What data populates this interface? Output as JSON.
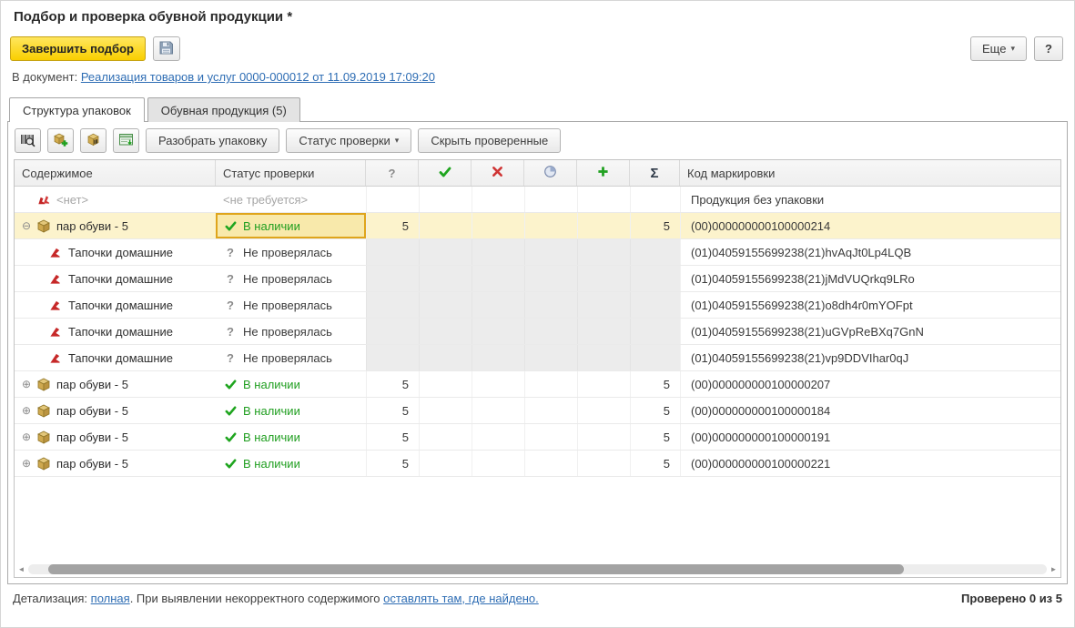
{
  "window": {
    "title": "Подбор и проверка обувной продукции *"
  },
  "colors": {
    "accent_yellow": "#f9cf00",
    "selected_row": "#fcf3cc",
    "selected_cell_border": "#dfa51c",
    "status_green": "#1f9e1f",
    "cross_red": "#cf3434",
    "link_blue": "#2e6db4"
  },
  "command_bar": {
    "finish_button": "Завершить подбор",
    "save_icon": "save-icon",
    "more_button": "Еще",
    "more_caret": "▾",
    "help_button": "?"
  },
  "document_line": {
    "label": "В документ:",
    "link": "Реализация товаров и услуг 0000-000012 от 11.09.2019 17:09:20"
  },
  "tabs": [
    {
      "label": "Структура упаковок",
      "active": true
    },
    {
      "label": "Обувная продукция (5)",
      "active": false
    }
  ],
  "packing_toolbar": {
    "icon_buttons": [
      {
        "icon": "barcode-scan-icon"
      },
      {
        "icon": "add-package-icon"
      },
      {
        "icon": "package-barcode-icon"
      },
      {
        "icon": "marking-codes-icon"
      }
    ],
    "unpack_button": "Разобрать упаковку",
    "status_filter_button": "Статус проверки",
    "status_filter_caret": "▾",
    "hide_checked_button": "Скрыть проверенные"
  },
  "table": {
    "header": {
      "content": "Содержимое",
      "status": "Статус проверки",
      "question": "?",
      "icons": [
        "check-icon",
        "cross-icon",
        "pie-icon",
        "plus-icon"
      ],
      "sum": "Σ",
      "code": "Код маркировки"
    },
    "rows": [
      {
        "kind": "root",
        "icon": "shoes-pair-icon",
        "content": "<нет>",
        "content_gray": true,
        "status_text": "<не требуется>",
        "status_gray": true,
        "q": "",
        "sum": "",
        "code": "Продукция без упаковки"
      },
      {
        "kind": "package",
        "selected": true,
        "expander": "⊖",
        "icon": "box-icon",
        "content": "пар обуви - 5",
        "status_icon": "check-icon",
        "status_text": "В наличии",
        "status_green": true,
        "q": "5",
        "sum": "5",
        "code": "(00)000000000100000214"
      },
      {
        "kind": "item",
        "icon": "shoe-icon",
        "content": "Тапочки домашние",
        "status_icon": "question-icon",
        "status_text": "Не проверялась",
        "q": "",
        "sum": "",
        "code": "(01)04059155699238(21)hvAqJt0Lp4LQB"
      },
      {
        "kind": "item",
        "icon": "shoe-icon",
        "content": "Тапочки домашние",
        "status_icon": "question-icon",
        "status_text": "Не проверялась",
        "q": "",
        "sum": "",
        "code": "(01)04059155699238(21)jMdVUQrkq9LRo"
      },
      {
        "kind": "item",
        "icon": "shoe-icon",
        "content": "Тапочки домашние",
        "status_icon": "question-icon",
        "status_text": "Не проверялась",
        "q": "",
        "sum": "",
        "code": "(01)04059155699238(21)o8dh4r0mYOFpt"
      },
      {
        "kind": "item",
        "icon": "shoe-icon",
        "content": "Тапочки домашние",
        "status_icon": "question-icon",
        "status_text": "Не проверялась",
        "q": "",
        "sum": "",
        "code": "(01)04059155699238(21)uGVpReBXq7GnN"
      },
      {
        "kind": "item",
        "icon": "shoe-icon",
        "content": "Тапочки домашние",
        "status_icon": "question-icon",
        "status_text": "Не проверялась",
        "q": "",
        "sum": "",
        "code": "(01)04059155699238(21)vp9DDVIhar0qJ"
      },
      {
        "kind": "package",
        "expander": "⊕",
        "icon": "box-icon",
        "content": "пар обуви - 5",
        "status_icon": "check-icon",
        "status_text": "В наличии",
        "status_green": true,
        "q": "5",
        "sum": "5",
        "code": "(00)000000000100000207"
      },
      {
        "kind": "package",
        "expander": "⊕",
        "icon": "box-icon",
        "content": "пар обуви - 5",
        "status_icon": "check-icon",
        "status_text": "В наличии",
        "status_green": true,
        "q": "5",
        "sum": "5",
        "code": "(00)000000000100000184"
      },
      {
        "kind": "package",
        "expander": "⊕",
        "icon": "box-icon",
        "content": "пар обуви - 5",
        "status_icon": "check-icon",
        "status_text": "В наличии",
        "status_green": true,
        "q": "5",
        "sum": "5",
        "code": "(00)000000000100000191"
      },
      {
        "kind": "package",
        "expander": "⊕",
        "icon": "box-icon",
        "content": "пар обуви - 5",
        "status_icon": "check-icon",
        "status_text": "В наличии",
        "status_green": true,
        "q": "5",
        "sum": "5",
        "code": "(00)000000000100000221"
      }
    ]
  },
  "scrollbar": {
    "left_arrow": "◄",
    "right_arrow": "►"
  },
  "footer": {
    "detail_label": "Детализация: ",
    "detail_link": "полная",
    "between_text": ". При выявлении некорректного содержимого ",
    "action_link": "оставлять там, где найдено.",
    "progress": "Проверено 0 из 5"
  }
}
